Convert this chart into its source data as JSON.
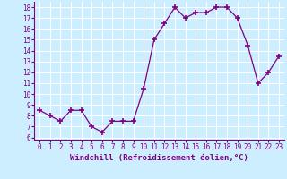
{
  "x": [
    0,
    1,
    2,
    3,
    4,
    5,
    6,
    7,
    8,
    9,
    10,
    11,
    12,
    13,
    14,
    15,
    16,
    17,
    18,
    19,
    20,
    21,
    22,
    23
  ],
  "y": [
    8.5,
    8.0,
    7.5,
    8.5,
    8.5,
    7.0,
    6.5,
    7.5,
    7.5,
    7.5,
    10.5,
    15.0,
    16.5,
    18.0,
    17.0,
    17.5,
    17.5,
    18.0,
    18.0,
    17.0,
    14.5,
    11.0,
    12.0,
    13.5
  ],
  "line_color": "#800080",
  "marker": "+",
  "marker_size": 4,
  "marker_lw": 1.2,
  "bg_color": "#cceeff",
  "grid_color": "#ffffff",
  "xlabel": "Windchill (Refroidissement éolien,°C)",
  "xlabel_color": "#800080",
  "tick_color": "#800080",
  "xlim": [
    -0.5,
    23.5
  ],
  "ylim": [
    5.8,
    18.5
  ],
  "yticks": [
    6,
    7,
    8,
    9,
    10,
    11,
    12,
    13,
    14,
    15,
    16,
    17,
    18
  ],
  "xticks": [
    0,
    1,
    2,
    3,
    4,
    5,
    6,
    7,
    8,
    9,
    10,
    11,
    12,
    13,
    14,
    15,
    16,
    17,
    18,
    19,
    20,
    21,
    22,
    23
  ],
  "tick_fontsize": 5.5,
  "xlabel_fontsize": 6.5
}
